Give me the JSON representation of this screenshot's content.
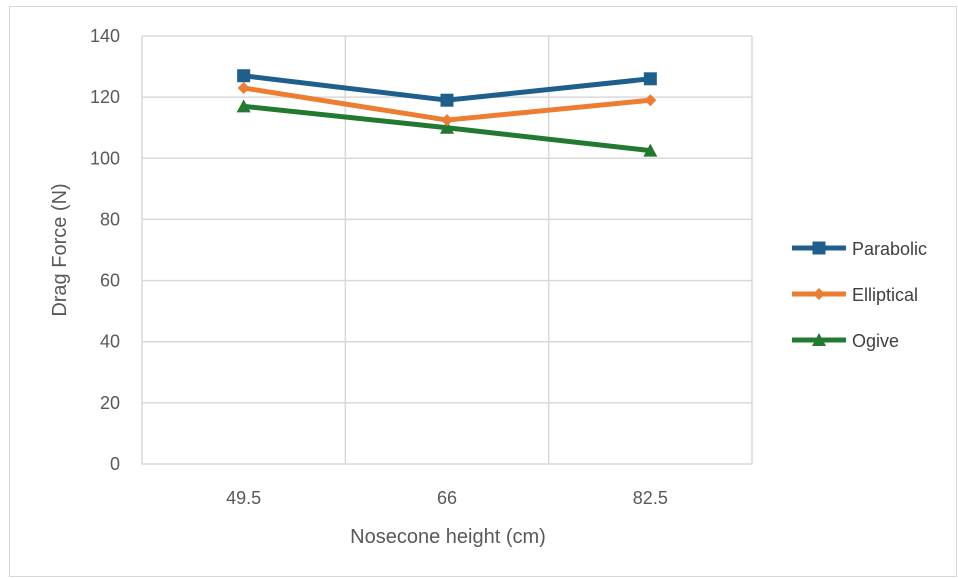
{
  "chart_data": {
    "type": "line",
    "title": "",
    "xlabel": "Nosecone height (cm)",
    "ylabel": "Drag Force (N)",
    "categories": [
      "49.5",
      "66",
      "82.5"
    ],
    "ylim": [
      0,
      140
    ],
    "yticks": [
      "0",
      "20",
      "40",
      "60",
      "80",
      "100",
      "120",
      "140"
    ],
    "grid": true,
    "legend_position": "right",
    "series": [
      {
        "name": "Parabolic",
        "values": [
          127,
          119,
          126
        ],
        "color": "#1f5f8b",
        "marker": "square"
      },
      {
        "name": "Elliptical",
        "values": [
          123,
          112.5,
          119
        ],
        "color": "#ed7d31",
        "marker": "diamond"
      },
      {
        "name": "Ogive",
        "values": [
          117,
          110,
          102.5
        ],
        "color": "#217a2f",
        "marker": "triangle"
      }
    ]
  }
}
